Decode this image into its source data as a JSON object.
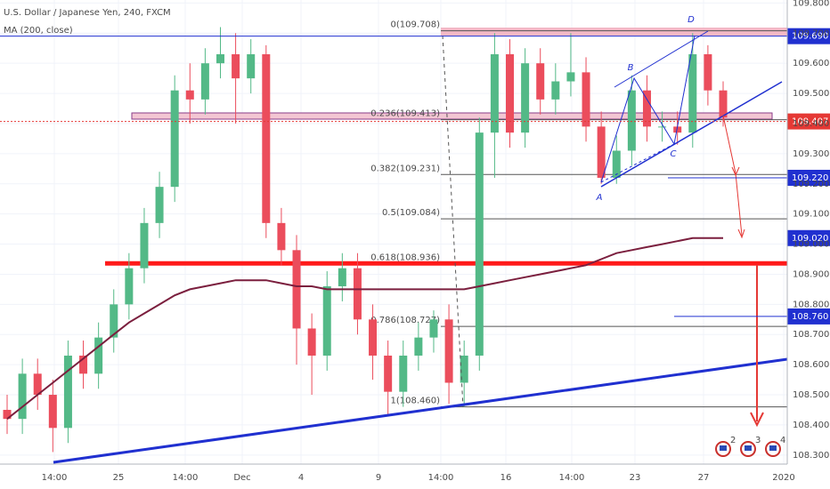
{
  "header": {
    "title": "U.S. Dollar / Japanese Yen, 240, FXCM",
    "indicator": "MA (200, close)"
  },
  "chart_data": {
    "type": "candlestick",
    "ylim": [
      108.27,
      109.81
    ],
    "yticks": [
      {
        "value": 108.3,
        "label": "108.300"
      },
      {
        "value": 108.4,
        "label": "108.400"
      },
      {
        "value": 108.5,
        "label": "108.500"
      },
      {
        "value": 108.6,
        "label": "108.600"
      },
      {
        "value": 108.7,
        "label": "108.700"
      },
      {
        "value": 108.8,
        "label": "108.800"
      },
      {
        "value": 108.9,
        "label": "108.900"
      },
      {
        "value": 109.0,
        "label": "109.000"
      },
      {
        "value": 109.1,
        "label": "109.100"
      },
      {
        "value": 109.2,
        "label": "109.200"
      },
      {
        "value": 109.3,
        "label": "109.300"
      },
      {
        "value": 109.4,
        "label": "109.400"
      },
      {
        "value": 109.5,
        "label": "109.500"
      },
      {
        "value": 109.6,
        "label": "109.600"
      },
      {
        "value": 109.7,
        "label": "109.700"
      },
      {
        "value": 109.8,
        "label": "109.800"
      }
    ],
    "x_labels": [
      "14:00",
      "25",
      "14:00",
      "Dec",
      "4",
      "9",
      "14:00",
      "16",
      "14:00",
      "23",
      "27",
      "2020"
    ],
    "up_color": "#53b987",
    "down_color": "#eb4d5c",
    "open": [
      108.45,
      108.42,
      108.57,
      108.5,
      108.39,
      108.63,
      108.57,
      108.69,
      108.8,
      108.92,
      109.07,
      109.19,
      109.51,
      109.48,
      109.6,
      109.63,
      109.55,
      109.63,
      109.07,
      108.98,
      108.72,
      108.63,
      108.86,
      108.92,
      108.75,
      108.63,
      108.51,
      108.63,
      108.69,
      108.75,
      108.54,
      108.63,
      109.37,
      109.63,
      109.37,
      109.6,
      109.48,
      109.54,
      109.57,
      109.39,
      109.22,
      109.31,
      109.51,
      109.39,
      109.39,
      109.37,
      109.63,
      109.51
    ],
    "high": [
      108.5,
      108.62,
      108.62,
      108.55,
      108.68,
      108.68,
      108.74,
      108.85,
      108.97,
      109.12,
      109.24,
      109.56,
      109.6,
      109.65,
      109.72,
      109.7,
      109.68,
      109.66,
      109.12,
      109.03,
      108.77,
      108.91,
      108.97,
      108.97,
      108.8,
      108.68,
      108.68,
      108.74,
      108.78,
      108.8,
      108.68,
      109.42,
      109.7,
      109.68,
      109.65,
      109.65,
      109.6,
      109.7,
      109.62,
      109.44,
      109.36,
      109.56,
      109.56,
      109.44,
      109.44,
      109.7,
      109.66,
      109.54
    ],
    "low": [
      108.37,
      108.37,
      108.45,
      108.31,
      108.34,
      108.52,
      108.52,
      108.64,
      108.75,
      108.87,
      109.02,
      109.14,
      109.4,
      109.43,
      109.55,
      109.4,
      109.5,
      109.02,
      108.93,
      108.6,
      108.5,
      108.58,
      108.81,
      108.7,
      108.55,
      108.43,
      108.46,
      108.58,
      108.64,
      108.47,
      108.46,
      108.58,
      109.22,
      109.32,
      109.32,
      109.43,
      109.43,
      109.49,
      109.34,
      109.2,
      109.2,
      109.26,
      109.34,
      109.34,
      109.33,
      109.32,
      109.46,
      109.39
    ],
    "close": [
      108.42,
      108.57,
      108.5,
      108.39,
      108.63,
      108.57,
      108.69,
      108.8,
      108.92,
      109.07,
      109.19,
      109.51,
      109.48,
      109.6,
      109.63,
      109.55,
      109.63,
      109.07,
      108.98,
      108.72,
      108.63,
      108.86,
      108.92,
      108.75,
      108.63,
      108.51,
      108.63,
      108.69,
      108.75,
      108.54,
      108.63,
      109.37,
      109.63,
      109.37,
      109.6,
      109.48,
      109.54,
      109.57,
      109.39,
      109.22,
      109.31,
      109.51,
      109.39,
      109.39,
      109.37,
      109.63,
      109.51,
      109.42
    ],
    "ma": {
      "color": "#7b1f3e",
      "values": [
        108.42,
        108.46,
        108.5,
        108.54,
        108.58,
        108.62,
        108.66,
        108.7,
        108.74,
        108.77,
        108.8,
        108.83,
        108.85,
        108.86,
        108.87,
        108.88,
        108.88,
        108.88,
        108.87,
        108.86,
        108.86,
        108.85,
        108.85,
        108.85,
        108.85,
        108.85,
        108.85,
        108.85,
        108.85,
        108.85,
        108.85,
        108.86,
        108.87,
        108.88,
        108.89,
        108.9,
        108.91,
        108.92,
        108.93,
        108.95,
        108.97,
        108.98,
        108.99,
        109.0,
        109.01,
        109.02,
        109.02,
        109.02
      ]
    },
    "fib_levels": [
      {
        "value": 109.708,
        "label": "0(109.708)"
      },
      {
        "value": 109.413,
        "label": "0.236(109.413)"
      },
      {
        "value": 109.231,
        "label": "0.382(109.231)"
      },
      {
        "value": 109.084,
        "label": "0.5(109.084)"
      },
      {
        "value": 108.936,
        "label": "0.618(108.936)"
      },
      {
        "value": 108.727,
        "label": "0.786(108.727)"
      },
      {
        "value": 108.46,
        "label": "1(108.460)"
      }
    ],
    "price_labels": [
      {
        "value": 109.69,
        "label": "109.690",
        "color": "#2030d0"
      },
      {
        "value": 109.407,
        "label": "109.407",
        "color": "#e53935"
      },
      {
        "value": 109.22,
        "label": "109.220",
        "color": "#2030d0"
      },
      {
        "value": 109.02,
        "label": "109.020",
        "color": "#2030d0"
      },
      {
        "value": 108.76,
        "label": "108.760",
        "color": "#2030d0"
      }
    ],
    "pattern_points": [
      "A",
      "B",
      "C",
      "D"
    ],
    "events": [
      "2",
      "3",
      "4"
    ]
  }
}
